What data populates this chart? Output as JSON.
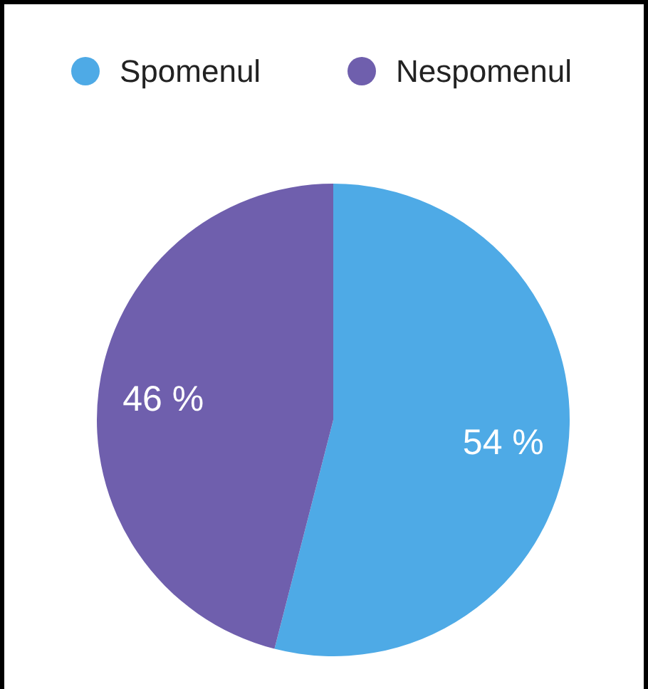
{
  "chart_data": {
    "type": "pie",
    "categories": [
      "Spomenul",
      "Nespomenul"
    ],
    "values": [
      54,
      46
    ],
    "colors": [
      "#4eaae6",
      "#6f5fad"
    ],
    "value_labels": [
      "54 %",
      "46 %"
    ],
    "legend": "top"
  }
}
